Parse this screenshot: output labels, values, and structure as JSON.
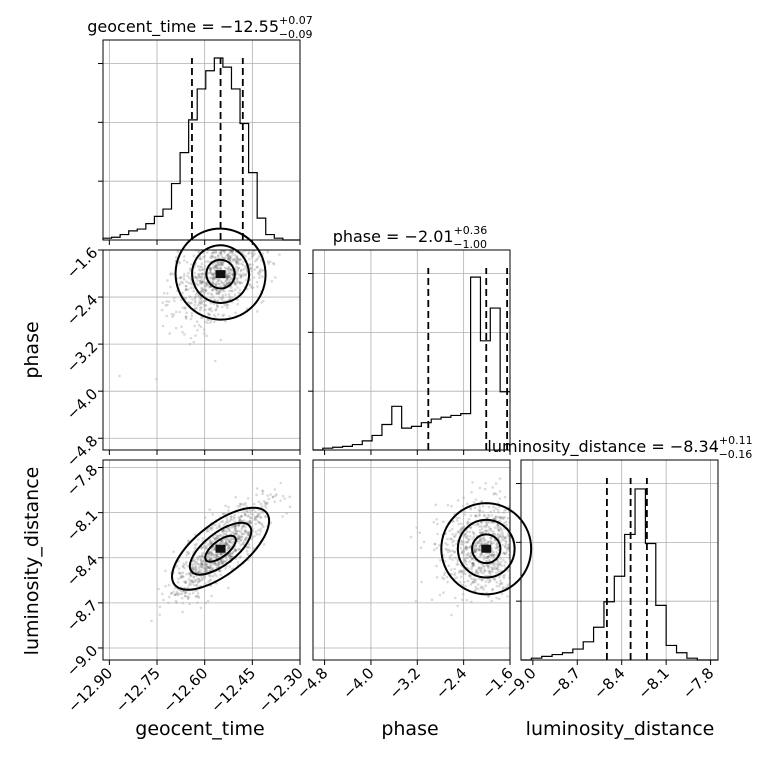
{
  "chart_data": {
    "type": "corner",
    "parameters": [
      "geocent_time",
      "phase",
      "luminosity_distance"
    ],
    "axis_labels": {
      "geocent_time": "geocent_time",
      "phase": "phase",
      "luminosity_distance": "luminosity_distance"
    },
    "ranges": {
      "geocent_time": [
        -12.92,
        -12.3
      ],
      "phase": [
        -5.0,
        -1.6
      ],
      "luminosity_distance": [
        -9.08,
        -7.75
      ]
    },
    "ticks": {
      "geocent_time": [
        "−12.90",
        "−12.75",
        "−12.60",
        "−12.45",
        "−12.30"
      ],
      "phase": [
        "−4.8",
        "−4.0",
        "−3.2",
        "−2.4",
        "−1.6"
      ],
      "luminosity_distance": [
        "−9.0",
        "−8.7",
        "−8.4",
        "−8.1",
        "−7.8"
      ]
    },
    "tick_values": {
      "geocent_time": [
        -12.9,
        -12.75,
        -12.6,
        -12.45,
        -12.3
      ],
      "phase": [
        -4.8,
        -4.0,
        -3.2,
        -2.4,
        -1.6
      ],
      "luminosity_distance": [
        -9.0,
        -8.7,
        -8.4,
        -8.1,
        -7.8
      ]
    },
    "summaries": {
      "geocent_time": {
        "label": "geocent_time = −12.55",
        "sup": "+0.07",
        "sub": "−0.09",
        "median": -12.55,
        "q16": -12.64,
        "q84": -12.48
      },
      "phase": {
        "label": "phase = −2.01",
        "sup": "+0.36",
        "sub": "−1.00",
        "median": -2.01,
        "q16": -3.01,
        "q84": -1.65
      },
      "luminosity_distance": {
        "label": "luminosity_distance = −8.34",
        "sup": "+0.11",
        "sub": "−0.16",
        "median": -8.34,
        "q16": -8.5,
        "q84": -8.23
      }
    },
    "histograms": {
      "geocent_time": {
        "edges": [
          -12.92,
          -12.3
        ],
        "counts": [
          0.01,
          0.015,
          0.03,
          0.05,
          0.06,
          0.09,
          0.13,
          0.17,
          0.31,
          0.48,
          0.66,
          0.83,
          0.93,
          1.0,
          0.95,
          0.83,
          0.64,
          0.37,
          0.12,
          0.03,
          0.01,
          0.0,
          0.0
        ]
      },
      "phase": {
        "edges": [
          -5.0,
          -1.6
        ],
        "counts": [
          0.0,
          0.01,
          0.015,
          0.02,
          0.03,
          0.05,
          0.08,
          0.14,
          0.24,
          0.12,
          0.13,
          0.15,
          0.17,
          0.18,
          0.19,
          0.2,
          0.95,
          0.6,
          0.78,
          0.32
        ]
      },
      "luminosity_distance": {
        "edges": [
          -9.08,
          -7.75
        ],
        "counts": [
          0.0,
          0.01,
          0.02,
          0.03,
          0.04,
          0.06,
          0.1,
          0.18,
          0.32,
          0.46,
          0.69,
          0.94,
          0.64,
          0.3,
          0.08,
          0.04,
          0.01,
          0.0,
          0.0
        ]
      }
    },
    "grid": true
  }
}
